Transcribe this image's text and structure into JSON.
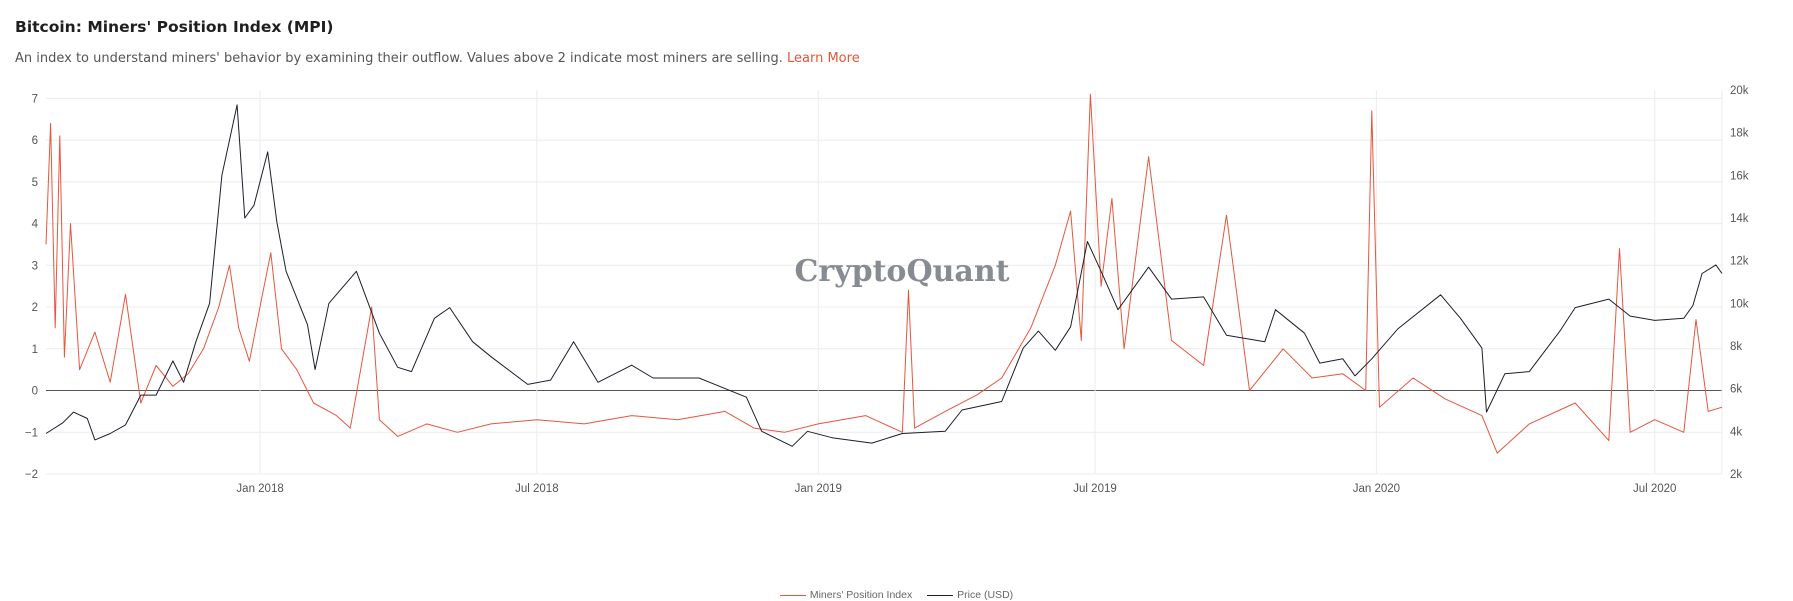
{
  "header": {
    "title": "Bitcoin: Miners' Position Index (MPI)",
    "subtitle": "An index to understand miners' behavior by examining their outflow. Values above 2 indicate most miners are selling.",
    "link_label": "Learn More"
  },
  "watermark": "CryptoQuant",
  "colors": {
    "mpi": "#e8553e",
    "price": "#1b1f2a",
    "grid": "#ececec",
    "zero": "#555555"
  },
  "chart_data": {
    "type": "line",
    "x_range": [
      "2017-08-14",
      "2020-08-14"
    ],
    "x_ticks": [
      {
        "date": "2018-01-01",
        "label": "Jan 2018"
      },
      {
        "date": "2018-07-01",
        "label": "Jul 2018"
      },
      {
        "date": "2019-01-01",
        "label": "Jan 2019"
      },
      {
        "date": "2019-07-01",
        "label": "Jul 2019"
      },
      {
        "date": "2020-01-01",
        "label": "Jan 2020"
      },
      {
        "date": "2020-07-01",
        "label": "Jul 2020"
      }
    ],
    "y_left": {
      "range": [
        -2,
        7.2
      ],
      "ticks": [
        -2,
        -1,
        0,
        1,
        2,
        3,
        4,
        5,
        6,
        7
      ],
      "labels": [
        "−2",
        "−1",
        "0",
        "1",
        "2",
        "3",
        "4",
        "5",
        "6",
        "7"
      ]
    },
    "y_right": {
      "range": [
        2000,
        20000
      ],
      "ticks": [
        2000,
        4000,
        6000,
        8000,
        10000,
        12000,
        14000,
        16000,
        18000,
        20000
      ],
      "labels": [
        "2k",
        "4k",
        "6k",
        "8k",
        "10k",
        "12k",
        "14k",
        "16k",
        "18k",
        "20k"
      ]
    },
    "grid": true,
    "legend_position": "bottom-center",
    "series": [
      {
        "name": "Miners' Position Index",
        "axis": "left",
        "points": [
          [
            "2017-08-14",
            3.5
          ],
          [
            "2017-08-17",
            6.4
          ],
          [
            "2017-08-20",
            1.5
          ],
          [
            "2017-08-23",
            6.1
          ],
          [
            "2017-08-26",
            0.8
          ],
          [
            "2017-08-30",
            4.0
          ],
          [
            "2017-09-05",
            0.5
          ],
          [
            "2017-09-15",
            1.4
          ],
          [
            "2017-09-25",
            0.2
          ],
          [
            "2017-10-05",
            2.3
          ],
          [
            "2017-10-15",
            -0.3
          ],
          [
            "2017-10-25",
            0.6
          ],
          [
            "2017-11-05",
            0.1
          ],
          [
            "2017-11-15",
            0.4
          ],
          [
            "2017-11-25",
            1.0
          ],
          [
            "2017-12-05",
            2.0
          ],
          [
            "2017-12-12",
            3.0
          ],
          [
            "2017-12-18",
            1.5
          ],
          [
            "2017-12-25",
            0.7
          ],
          [
            "2018-01-02",
            2.2
          ],
          [
            "2018-01-08",
            3.3
          ],
          [
            "2018-01-15",
            1.0
          ],
          [
            "2018-01-25",
            0.5
          ],
          [
            "2018-02-05",
            -0.3
          ],
          [
            "2018-02-20",
            -0.6
          ],
          [
            "2018-03-01",
            -0.9
          ],
          [
            "2018-03-15",
            2.0
          ],
          [
            "2018-03-20",
            -0.7
          ],
          [
            "2018-04-01",
            -1.1
          ],
          [
            "2018-04-20",
            -0.8
          ],
          [
            "2018-05-10",
            -1.0
          ],
          [
            "2018-06-01",
            -0.8
          ],
          [
            "2018-07-01",
            -0.7
          ],
          [
            "2018-08-01",
            -0.8
          ],
          [
            "2018-09-01",
            -0.6
          ],
          [
            "2018-10-01",
            -0.7
          ],
          [
            "2018-11-01",
            -0.5
          ],
          [
            "2018-11-20",
            -0.9
          ],
          [
            "2018-12-10",
            -1.0
          ],
          [
            "2019-01-01",
            -0.8
          ],
          [
            "2019-02-01",
            -0.6
          ],
          [
            "2019-02-25",
            -1.0
          ],
          [
            "2019-03-01",
            2.4
          ],
          [
            "2019-03-05",
            -0.9
          ],
          [
            "2019-03-25",
            -0.5
          ],
          [
            "2019-04-15",
            -0.1
          ],
          [
            "2019-05-01",
            0.3
          ],
          [
            "2019-05-20",
            1.5
          ],
          [
            "2019-06-05",
            3.0
          ],
          [
            "2019-06-15",
            4.3
          ],
          [
            "2019-06-22",
            1.2
          ],
          [
            "2019-06-28",
            7.1
          ],
          [
            "2019-07-05",
            2.5
          ],
          [
            "2019-07-12",
            4.6
          ],
          [
            "2019-07-20",
            1.0
          ],
          [
            "2019-08-05",
            5.6
          ],
          [
            "2019-08-20",
            1.2
          ],
          [
            "2019-09-10",
            0.6
          ],
          [
            "2019-09-25",
            4.2
          ],
          [
            "2019-10-10",
            0.0
          ],
          [
            "2019-11-01",
            1.0
          ],
          [
            "2019-11-20",
            0.3
          ],
          [
            "2019-12-10",
            0.4
          ],
          [
            "2019-12-25",
            0.0
          ],
          [
            "2019-12-29",
            6.7
          ],
          [
            "2020-01-03",
            -0.4
          ],
          [
            "2020-01-25",
            0.3
          ],
          [
            "2020-02-15",
            -0.2
          ],
          [
            "2020-03-10",
            -0.6
          ],
          [
            "2020-03-20",
            -1.5
          ],
          [
            "2020-04-10",
            -0.8
          ],
          [
            "2020-05-10",
            -0.3
          ],
          [
            "2020-06-01",
            -1.2
          ],
          [
            "2020-06-08",
            3.4
          ],
          [
            "2020-06-15",
            -1.0
          ],
          [
            "2020-07-01",
            -0.7
          ],
          [
            "2020-07-20",
            -1.0
          ],
          [
            "2020-07-28",
            1.7
          ],
          [
            "2020-08-05",
            -0.5
          ],
          [
            "2020-08-14",
            -0.4
          ]
        ]
      },
      {
        "name": "Price (USD)",
        "axis": "right",
        "points": [
          [
            "2017-08-14",
            3900
          ],
          [
            "2017-08-25",
            4400
          ],
          [
            "2017-09-01",
            4900
          ],
          [
            "2017-09-10",
            4600
          ],
          [
            "2017-09-15",
            3600
          ],
          [
            "2017-09-25",
            3900
          ],
          [
            "2017-10-05",
            4300
          ],
          [
            "2017-10-15",
            5700
          ],
          [
            "2017-10-25",
            5700
          ],
          [
            "2017-11-05",
            7300
          ],
          [
            "2017-11-12",
            6300
          ],
          [
            "2017-11-20",
            8200
          ],
          [
            "2017-11-29",
            10000
          ],
          [
            "2017-12-07",
            16000
          ],
          [
            "2017-12-17",
            19300
          ],
          [
            "2017-12-22",
            14000
          ],
          [
            "2017-12-28",
            14600
          ],
          [
            "2018-01-06",
            17100
          ],
          [
            "2018-01-12",
            13800
          ],
          [
            "2018-01-18",
            11500
          ],
          [
            "2018-02-01",
            9000
          ],
          [
            "2018-02-06",
            6900
          ],
          [
            "2018-02-15",
            10000
          ],
          [
            "2018-03-05",
            11500
          ],
          [
            "2018-03-20",
            8600
          ],
          [
            "2018-04-01",
            7000
          ],
          [
            "2018-04-10",
            6800
          ],
          [
            "2018-04-25",
            9300
          ],
          [
            "2018-05-05",
            9800
          ],
          [
            "2018-05-20",
            8200
          ],
          [
            "2018-06-01",
            7500
          ],
          [
            "2018-06-25",
            6200
          ],
          [
            "2018-07-10",
            6400
          ],
          [
            "2018-07-25",
            8200
          ],
          [
            "2018-08-10",
            6300
          ],
          [
            "2018-09-01",
            7100
          ],
          [
            "2018-09-15",
            6500
          ],
          [
            "2018-10-15",
            6500
          ],
          [
            "2018-11-15",
            5600
          ],
          [
            "2018-11-25",
            4000
          ],
          [
            "2018-12-15",
            3300
          ],
          [
            "2018-12-25",
            4000
          ],
          [
            "2019-01-10",
            3700
          ],
          [
            "2019-02-05",
            3450
          ],
          [
            "2019-02-25",
            3900
          ],
          [
            "2019-03-25",
            4000
          ],
          [
            "2019-04-05",
            5000
          ],
          [
            "2019-05-01",
            5400
          ],
          [
            "2019-05-15",
            7900
          ],
          [
            "2019-05-25",
            8700
          ],
          [
            "2019-06-05",
            7800
          ],
          [
            "2019-06-15",
            8900
          ],
          [
            "2019-06-26",
            12900
          ],
          [
            "2019-07-05",
            11500
          ],
          [
            "2019-07-16",
            9700
          ],
          [
            "2019-08-05",
            11700
          ],
          [
            "2019-08-20",
            10200
          ],
          [
            "2019-09-10",
            10300
          ],
          [
            "2019-09-25",
            8500
          ],
          [
            "2019-10-20",
            8200
          ],
          [
            "2019-10-27",
            9700
          ],
          [
            "2019-11-15",
            8600
          ],
          [
            "2019-11-25",
            7200
          ],
          [
            "2019-12-10",
            7400
          ],
          [
            "2019-12-18",
            6600
          ],
          [
            "2019-12-29",
            7400
          ],
          [
            "2020-01-15",
            8800
          ],
          [
            "2020-02-12",
            10400
          ],
          [
            "2020-02-25",
            9300
          ],
          [
            "2020-03-10",
            7900
          ],
          [
            "2020-03-13",
            4900
          ],
          [
            "2020-03-25",
            6700
          ],
          [
            "2020-04-10",
            6800
          ],
          [
            "2020-04-30",
            8700
          ],
          [
            "2020-05-10",
            9800
          ],
          [
            "2020-06-01",
            10200
          ],
          [
            "2020-06-15",
            9400
          ],
          [
            "2020-07-01",
            9200
          ],
          [
            "2020-07-20",
            9300
          ],
          [
            "2020-07-26",
            9900
          ],
          [
            "2020-08-01",
            11400
          ],
          [
            "2020-08-10",
            11800
          ],
          [
            "2020-08-14",
            11400
          ]
        ]
      }
    ]
  }
}
